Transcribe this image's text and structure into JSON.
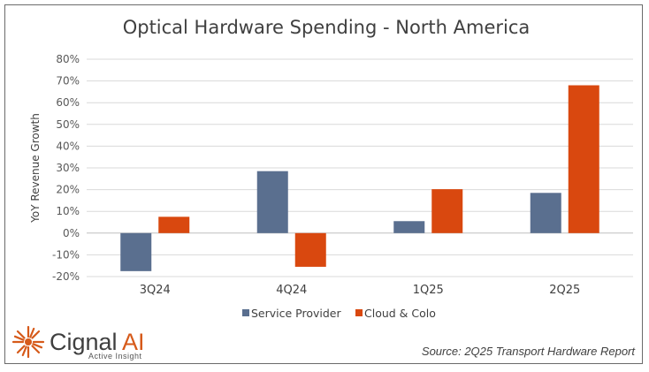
{
  "chart_data": {
    "type": "bar",
    "title": "Optical Hardware Spending - North America",
    "xlabel": "",
    "ylabel": "YoY Revenue Growth",
    "categories": [
      "3Q24",
      "4Q24",
      "1Q25",
      "2Q25"
    ],
    "series": [
      {
        "name": "Service Provider",
        "color": "#5a6f8f",
        "values": [
          -17.5,
          28.5,
          5.5,
          18.5
        ]
      },
      {
        "name": "Cloud & Colo",
        "color": "#d9480f",
        "values": [
          7.5,
          -15.5,
          20.2,
          68.0
        ]
      }
    ],
    "ylim": [
      -20,
      80
    ],
    "yticks": [
      -20,
      -10,
      0,
      10,
      20,
      30,
      40,
      50,
      60,
      70,
      80
    ],
    "ytick_labels": [
      "-20%",
      "-10%",
      "0%",
      "10%",
      "20%",
      "30%",
      "40%",
      "50%",
      "60%",
      "70%",
      "80%"
    ],
    "grid": true,
    "legend_position": "bottom-center"
  },
  "footer": {
    "logo_word": "Cignal",
    "logo_ai": "AI",
    "logo_tagline": "Active Insight",
    "source": "Source: 2Q25 Transport Hardware Report"
  },
  "colors": {
    "grid": "#d9d9d9",
    "axis": "#bfbfbf",
    "logo_orange": "#d65a1a"
  },
  "icons": {
    "logo": "cignal-sunburst-icon"
  }
}
